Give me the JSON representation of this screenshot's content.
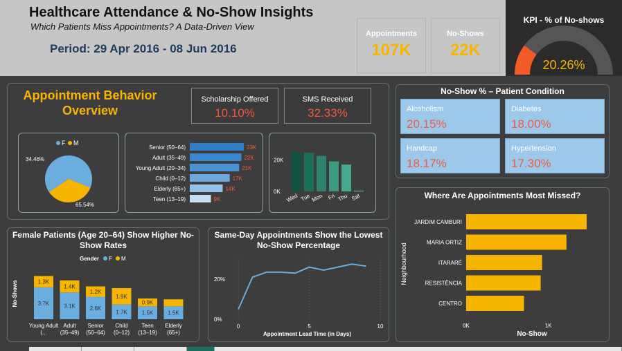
{
  "header": {
    "title": "Healthcare Attendance & No-Show Insights",
    "subtitle": "Which Patients Miss Appointments? A Data-Driven View",
    "period": "Period: 29 Apr 2016 - 08 Jun 2016"
  },
  "kpis": [
    {
      "label": "Appointments",
      "value": "107K"
    },
    {
      "label": "No-Shows",
      "value": "22K"
    }
  ],
  "gauge": {
    "title": "KPI - % of No-shows",
    "value_label": "20.26%",
    "value": 0.2026,
    "fill": "#f25a27",
    "track": "#555555"
  },
  "behavior": {
    "title": "Appointment Behavior Overview",
    "metrics": [
      {
        "label": "Scholarship Offered",
        "value": "10.10%"
      },
      {
        "label": "SMS Received",
        "value": "32.33%"
      }
    ]
  },
  "colors": {
    "female": "#6aaee0",
    "male": "#f7b500",
    "accent": "#f7b500",
    "red": "#f25a3c"
  },
  "chart_data": [
    {
      "type": "pie",
      "legend": [
        "F",
        "M"
      ],
      "slices": [
        {
          "name": "F",
          "value": 65.54,
          "label": "65.54%"
        },
        {
          "name": "M",
          "value": 34.46,
          "label": "34.46%"
        }
      ]
    },
    {
      "type": "bar",
      "orientation": "horizontal",
      "categories": [
        "Senior (50–64)",
        "Adult (35–49)",
        "Young Adult (20–34)",
        "Child (0–12)",
        "Elderly (65+)",
        "Teen (13–19)"
      ],
      "values": [
        23,
        22,
        21,
        17,
        14,
        9
      ],
      "value_labels": [
        "23K",
        "22K",
        "21K",
        "17K",
        "14K",
        "9K"
      ],
      "colors": [
        "#2f7fc9",
        "#3887cf",
        "#4a94d6",
        "#6ba8e0",
        "#94c1ea",
        "#c9def4"
      ]
    },
    {
      "type": "bar",
      "categories": [
        "Wed",
        "Tue",
        "Mon",
        "Fri",
        "Thu",
        "Sat"
      ],
      "values": [
        25,
        24.5,
        22.5,
        19,
        17,
        0.1
      ],
      "y_ticks": [
        {
          "value": 20,
          "label": "20K"
        },
        {
          "value": 0,
          "label": "0K"
        }
      ],
      "ylim": [
        0,
        28
      ],
      "colors": [
        "#0e5240",
        "#1b6f58",
        "#2e8370",
        "#3d9b84",
        "#47a890",
        "#6cc1a9"
      ]
    },
    {
      "type": "bar",
      "stacked": true,
      "title": "Female Patients (Age 20–64) Show Higher No-Show Rates",
      "ylabel": "No-Shows",
      "legend_title": "Gender",
      "legend": [
        "F",
        "M"
      ],
      "categories": [
        "Young Adult (...",
        "Adult (35–49)",
        "Senior (50–64)",
        "Child (0–12)",
        "Teen (13–19)",
        "Elderly (65+)"
      ],
      "series": [
        {
          "name": "F",
          "values": [
            3.7,
            3.1,
            2.6,
            1.7,
            1.5,
            1.5
          ],
          "labels": [
            "3.7K",
            "3.1K",
            "2.6K",
            "1.7K",
            "1.5K",
            "1.5K"
          ]
        },
        {
          "name": "M",
          "values": [
            1.3,
            1.4,
            1.2,
            1.9,
            0.9,
            0.8
          ],
          "labels": [
            "1.3K",
            "1.4K",
            "1.2K",
            "1.9K",
            "0.9K",
            ""
          ]
        }
      ],
      "ylim": [
        0,
        6
      ]
    },
    {
      "type": "line",
      "title": "Same-Day Appointments Show the Lowest No-Show Percentage",
      "xlabel": "Appointment Lead Time (in Days)",
      "x": [
        0,
        1,
        2,
        3,
        4,
        5,
        6,
        7,
        8,
        9
      ],
      "y": [
        5,
        21,
        23.5,
        23.5,
        23,
        26,
        24.5,
        26,
        27.5,
        26.5
      ],
      "xlim": [
        -0.3,
        10
      ],
      "ylim": [
        0,
        30
      ],
      "x_ticks": [
        0,
        5,
        10
      ],
      "y_ticks": [
        {
          "value": 0,
          "label": "0%"
        },
        {
          "value": 20,
          "label": "20%"
        }
      ]
    },
    {
      "type": "bar",
      "orientation": "horizontal",
      "title": "Where Are Appointments Most Missed?",
      "xlabel": "No-Show",
      "ylabel": "Neighbourhood",
      "categories": [
        "JARDIM CAMBURI",
        "MARIA ORTIZ",
        "ITARARÉ",
        "RESISTÊNCIA",
        "CENTRO"
      ],
      "values": [
        1465,
        1219,
        923,
        906,
        703
      ],
      "xlim": [
        0,
        1600
      ],
      "x_ticks": [
        {
          "value": 0,
          "label": "0K"
        },
        {
          "value": 1000,
          "label": "1K"
        }
      ]
    }
  ],
  "conditions": {
    "title": "No-Show % – Patient Condition",
    "items": [
      {
        "label": "Alcoholism",
        "value": "20.15%"
      },
      {
        "label": "Diabetes",
        "value": "18.00%"
      },
      {
        "label": "Handcap",
        "value": "18.17%"
      },
      {
        "label": "Hypertension",
        "value": "17.30%"
      }
    ]
  }
}
